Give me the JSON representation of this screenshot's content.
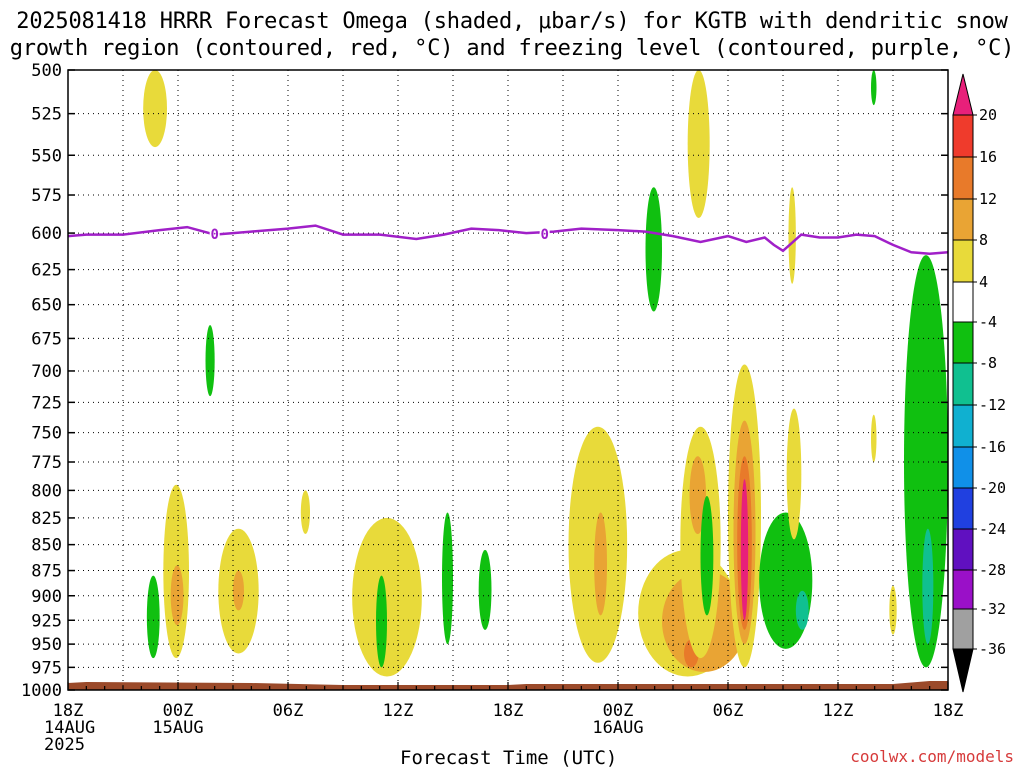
{
  "title_line1": "2025081418 HRRR Forecast Omega (shaded, μbar/s) for KGTB with dendritic snow",
  "title_line2": "growth region (contoured, red, °C) and freezing level (contoured, purple, °C)",
  "credit": "coolwx.com/models",
  "colors": {
    "freezing_level": "#a020c8",
    "terrain": "#9b4a2a",
    "grid": "#000000"
  },
  "chart_data": {
    "type": "heatmap",
    "xlabel": "Forecast Time (UTC)",
    "x_ticks": [
      {
        "hour": 0,
        "label": [
          "18Z",
          "14AUG",
          "2025"
        ]
      },
      {
        "hour": 6,
        "label": [
          "00Z",
          "15AUG"
        ]
      },
      {
        "hour": 12,
        "label": [
          "06Z"
        ]
      },
      {
        "hour": 18,
        "label": [
          "12Z"
        ]
      },
      {
        "hour": 24,
        "label": [
          "18Z"
        ]
      },
      {
        "hour": 30,
        "label": [
          "00Z",
          "16AUG"
        ]
      },
      {
        "hour": 36,
        "label": [
          "06Z"
        ]
      },
      {
        "hour": 42,
        "label": [
          "12Z"
        ]
      },
      {
        "hour": 48,
        "label": [
          "18Z"
        ]
      }
    ],
    "xlim": [
      0,
      48
    ],
    "ylim": [
      1000,
      500
    ],
    "y_ticks": [
      500,
      525,
      550,
      575,
      600,
      625,
      650,
      675,
      700,
      725,
      750,
      775,
      800,
      825,
      850,
      875,
      900,
      925,
      950,
      975,
      1000
    ],
    "y_scale": "log-pressure",
    "grid": true,
    "freezing_level": {
      "label": "0",
      "hours": [
        0,
        1,
        3,
        5,
        6.5,
        8,
        10,
        12,
        13.5,
        15,
        17,
        19,
        20.5,
        22,
        23.5,
        25,
        26.5,
        28,
        30,
        31.5,
        33,
        34.5,
        36,
        37,
        38,
        38.5,
        39,
        40,
        41,
        42,
        43,
        44,
        45,
        46,
        47,
        48
      ],
      "pressure": [
        602,
        601,
        601,
        598,
        596,
        601,
        599,
        597,
        595,
        601,
        601,
        604,
        601,
        597,
        598,
        600,
        599,
        597,
        598,
        599,
        602,
        606,
        602,
        606,
        603,
        608,
        612,
        601,
        603,
        603,
        601,
        602,
        608,
        613,
        614,
        613
      ]
    },
    "colorbar": {
      "levels": [
        -36,
        -32,
        -28,
        -24,
        -20,
        -16,
        -12,
        -8,
        -4,
        4,
        8,
        12,
        16,
        20
      ],
      "labels": [
        "20",
        "16",
        "12",
        "8",
        "4",
        "-4",
        "-8",
        "-12",
        "-16",
        "-20",
        "-24",
        "-28",
        "-32",
        "-36"
      ],
      "colors": {
        "gt20": "#e8207a",
        "16_20": "#ef3b2c",
        "12_16": "#e87a2a",
        "8_12": "#e9a434",
        "4_8": "#e8da3a",
        "m4_4": "#ffffff",
        "m8_m4": "#10c010",
        "m12_m8": "#10c090",
        "m16_m12": "#10b0d0",
        "m20_m16": "#1090e8",
        "m24_m20": "#2040e0",
        "m28_m24": "#6010c0",
        "m32_m28": "#9a10c8",
        "m36_m32": "#a0a0a0",
        "lt_m36": "#000000"
      }
    },
    "shaded_regions": [
      {
        "value": 6,
        "hours": [
          [
            4.1,
            5.4
          ]
        ],
        "p": [
          [
            500,
            545
          ]
        ]
      },
      {
        "value": 6,
        "hours": [
          [
            5.2,
            6.6
          ]
        ],
        "p": [
          [
            795,
            965
          ]
        ]
      },
      {
        "value": 10,
        "hours": [
          [
            5.6,
            6.3
          ]
        ],
        "p": [
          [
            870,
            930
          ]
        ]
      },
      {
        "value": -6,
        "hours": [
          [
            4.3,
            5.0
          ]
        ],
        "p": [
          [
            880,
            965
          ]
        ]
      },
      {
        "value": 6,
        "hours": [
          [
            8.2,
            10.4
          ]
        ],
        "p": [
          [
            835,
            960
          ]
        ]
      },
      {
        "value": 10,
        "hours": [
          [
            9.0,
            9.6
          ]
        ],
        "p": [
          [
            875,
            915
          ]
        ]
      },
      {
        "value": -6,
        "hours": [
          [
            7.5,
            8.0
          ]
        ],
        "p": [
          [
            665,
            720
          ]
        ]
      },
      {
        "value": 6,
        "hours": [
          [
            12.7,
            13.2
          ]
        ],
        "p": [
          [
            800,
            840
          ]
        ]
      },
      {
        "value": 6,
        "hours": [
          [
            15.5,
            19.3
          ]
        ],
        "p": [
          [
            825,
            985
          ]
        ]
      },
      {
        "value": -6,
        "hours": [
          [
            16.8,
            17.4
          ]
        ],
        "p": [
          [
            880,
            975
          ]
        ]
      },
      {
        "value": -6,
        "hours": [
          [
            20.4,
            21.0
          ]
        ],
        "p": [
          [
            820,
            950
          ]
        ]
      },
      {
        "value": -6,
        "hours": [
          [
            22.4,
            23.1
          ]
        ],
        "p": [
          [
            855,
            935
          ]
        ]
      },
      {
        "value": 6,
        "hours": [
          [
            27.3,
            30.5
          ]
        ],
        "p": [
          [
            745,
            970
          ]
        ]
      },
      {
        "value": 10,
        "hours": [
          [
            28.7,
            29.4
          ]
        ],
        "p": [
          [
            820,
            920
          ]
        ]
      },
      {
        "value": 6,
        "hours": [
          [
            31.1,
            36.5
          ]
        ],
        "p": [
          [
            855,
            985
          ]
        ]
      },
      {
        "value": 10,
        "hours": [
          [
            32.4,
            37.0
          ]
        ],
        "p": [
          [
            875,
            980
          ]
        ]
      },
      {
        "value": 14,
        "hours": [
          [
            33.6,
            34.4
          ]
        ],
        "p": [
          [
            945,
            975
          ]
        ]
      },
      {
        "value": -6,
        "hours": [
          [
            31.5,
            32.4
          ]
        ],
        "p": [
          [
            570,
            655
          ]
        ]
      },
      {
        "value": 6,
        "hours": [
          [
            33.8,
            35.0
          ]
        ],
        "p": [
          [
            500,
            590
          ]
        ]
      },
      {
        "value": 6,
        "hours": [
          [
            33.4,
            35.6
          ]
        ],
        "p": [
          [
            745,
            965
          ]
        ]
      },
      {
        "value": 10,
        "hours": [
          [
            33.9,
            34.8
          ]
        ],
        "p": [
          [
            770,
            840
          ]
        ]
      },
      {
        "value": -6,
        "hours": [
          [
            34.5,
            35.2
          ]
        ],
        "p": [
          [
            805,
            920
          ]
        ]
      },
      {
        "value": 6,
        "hours": [
          [
            36.0,
            37.8
          ]
        ],
        "p": [
          [
            695,
            975
          ]
        ]
      },
      {
        "value": 10,
        "hours": [
          [
            36.3,
            37.5
          ]
        ],
        "p": [
          [
            740,
            950
          ]
        ]
      },
      {
        "value": 14,
        "hours": [
          [
            36.5,
            37.3
          ]
        ],
        "p": [
          [
            770,
            935
          ]
        ]
      },
      {
        "value": 22,
        "hours": [
          [
            36.7,
            37.1
          ]
        ],
        "p": [
          [
            790,
            925
          ]
        ]
      },
      {
        "value": -6,
        "hours": [
          [
            37.7,
            40.6
          ]
        ],
        "p": [
          [
            820,
            955
          ]
        ]
      },
      {
        "value": -10,
        "hours": [
          [
            39.7,
            40.4
          ]
        ],
        "p": [
          [
            895,
            935
          ]
        ]
      },
      {
        "value": 6,
        "hours": [
          [
            39.2,
            40.0
          ]
        ],
        "p": [
          [
            730,
            845
          ]
        ]
      },
      {
        "value": 6,
        "hours": [
          [
            39.3,
            39.7
          ]
        ],
        "p": [
          [
            570,
            635
          ]
        ]
      },
      {
        "value": -6,
        "hours": [
          [
            43.8,
            44.1
          ]
        ],
        "p": [
          [
            500,
            520
          ]
        ]
      },
      {
        "value": 6,
        "hours": [
          [
            43.8,
            44.1
          ]
        ],
        "p": [
          [
            735,
            775
          ]
        ]
      },
      {
        "value": 6,
        "hours": [
          [
            44.8,
            45.2
          ]
        ],
        "p": [
          [
            890,
            940
          ]
        ]
      },
      {
        "value": -6,
        "hours": [
          [
            45.6,
            48.0
          ]
        ],
        "p": [
          [
            615,
            975
          ]
        ]
      },
      {
        "value": -10,
        "hours": [
          [
            46.6,
            47.2
          ]
        ],
        "p": [
          [
            835,
            950
          ]
        ]
      }
    ]
  }
}
